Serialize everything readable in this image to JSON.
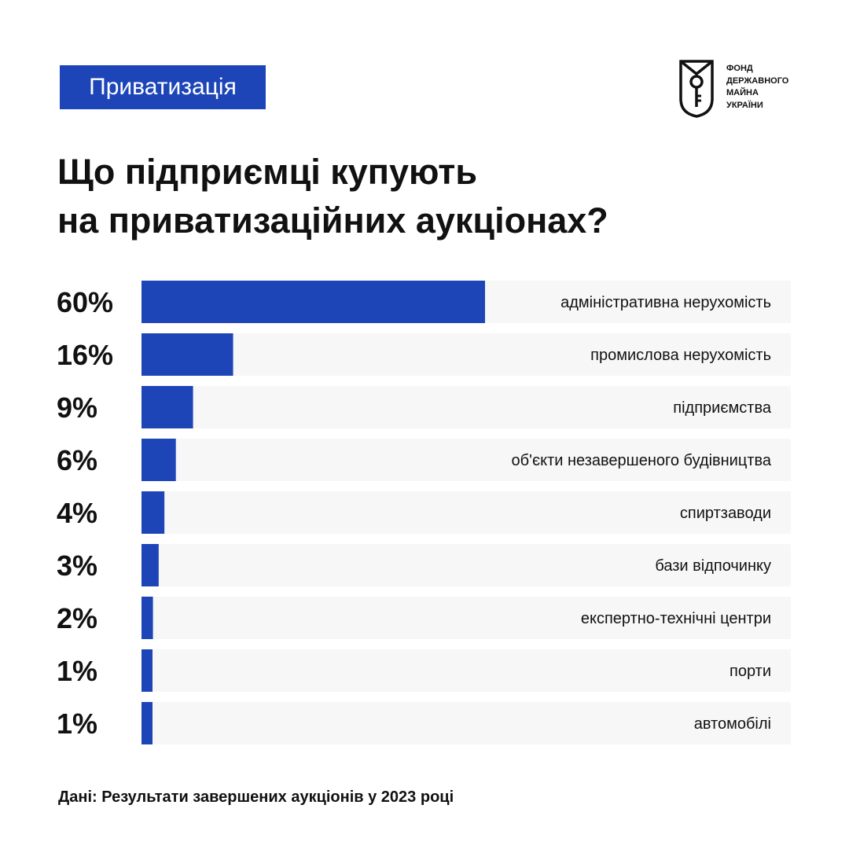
{
  "header": {
    "tag_label": "Приватизація",
    "logo_lines": [
      "ФОНД",
      "ДЕРЖАВНОГО",
      "МАЙНА",
      "УКРАЇНИ"
    ]
  },
  "title_lines": [
    "Що підприємці купують",
    "на приватизаційних аукціонах?"
  ],
  "source": "Дані: Результати завершених аукціонів у 2023 році",
  "colors": {
    "accent": "#1d45b8",
    "track": "#f7f7f7",
    "text": "#111111"
  },
  "chart_data": {
    "type": "bar",
    "orientation": "horizontal",
    "categories": [
      "адміністративна нерухомість",
      "промислова нерухомість",
      "підприємства",
      "об'єкти незавершеного будівництва",
      "спиртзаводи",
      "бази відпочинку",
      "експертно-технічні центри",
      "порти",
      "автомобілі"
    ],
    "values": [
      60,
      16,
      9,
      6,
      4,
      3,
      2,
      1,
      1
    ],
    "value_labels": [
      "60%",
      "16%",
      "9%",
      "6%",
      "4%",
      "3%",
      "2%",
      "1%",
      "1%"
    ],
    "unit": "%",
    "grid": false,
    "legend": "none"
  }
}
